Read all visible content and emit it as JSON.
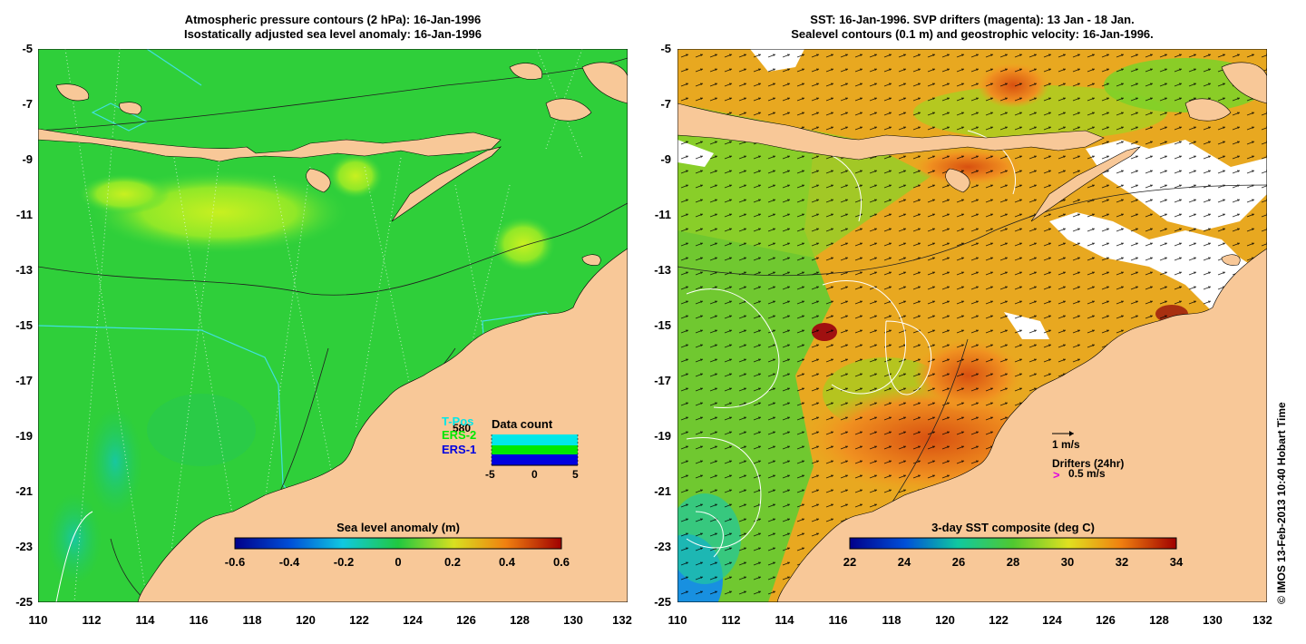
{
  "left_panel": {
    "title_line1": "Atmospheric pressure contours (2 hPa): 16-Jan-1996",
    "title_line2": "Isostatically adjusted sea level anomaly: 16-Jan-1996",
    "colorbar_label": "Sea level anomaly (m)",
    "colorbar_ticks": [
      "-0.6",
      "-0.4",
      "-0.2",
      "0",
      "0.2",
      "0.4",
      "0.6"
    ],
    "inset": {
      "title": "Data count",
      "count": "580",
      "legend": [
        "T-Pos",
        "ERS-2",
        "ERS-1"
      ],
      "legend_colors": [
        "#00e8e8",
        "#00e800",
        "#0000e0"
      ],
      "x_ticks": [
        "-5",
        "0",
        "5"
      ]
    }
  },
  "right_panel": {
    "title_line1": "SST: 16-Jan-1996. SVP drifters (magenta): 13 Jan - 18 Jan.",
    "title_line2": "Sealevel contours (0.1 m) and geostrophic velocity: 16-Jan-1996.",
    "colorbar_label": "3-day SST composite (deg C)",
    "colorbar_ticks": [
      "22",
      "24",
      "26",
      "28",
      "30",
      "32",
      "34"
    ],
    "velocity_scale": "1 m/s",
    "drifters_label": "Drifters (24hr)",
    "drifters_scale": "0.5 m/s",
    "drifter_marker": ">"
  },
  "axes": {
    "y_ticks": [
      "-5",
      "-7",
      "-9",
      "-11",
      "-13",
      "-15",
      "-17",
      "-19",
      "-21",
      "-23",
      "-25"
    ],
    "x_ticks": [
      "110",
      "112",
      "114",
      "116",
      "118",
      "120",
      "122",
      "124",
      "126",
      "128",
      "130",
      "132"
    ]
  },
  "copyright": "© IMOS 13-Feb-2013 10:40 Hobart Time",
  "colors": {
    "land": "#f8c898",
    "ocean_left": "#2fcf3a",
    "ocean_right": "#f0a020"
  }
}
